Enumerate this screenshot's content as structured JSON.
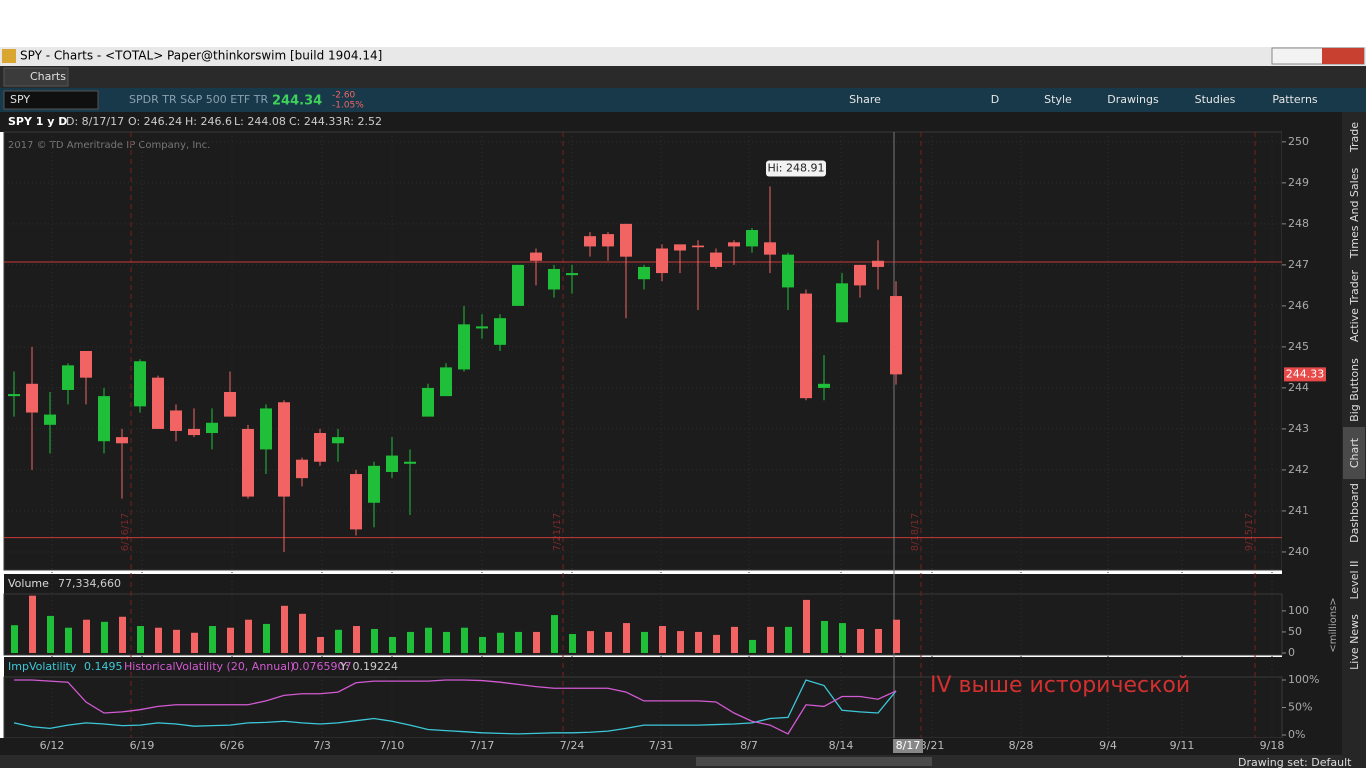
{
  "window": {
    "title": "SPY - Charts - <TOTAL> Paper@thinkorswim [build 1904.14]",
    "tab": "Charts"
  },
  "toolbar": {
    "symbol": "SPY",
    "description": "SPDR TR S&P 500 ETF TR",
    "last": "244.34",
    "change": "-2.60",
    "change_pct": "-1.05%",
    "buttons": [
      "Share",
      "D",
      "Style",
      "Drawings",
      "Studies",
      "Patterns"
    ]
  },
  "sidebar": [
    "Trade",
    "Times And Sales",
    "Active Trader",
    "Big Buttons",
    "Chart",
    "Dashboard",
    "Level II",
    "Live News"
  ],
  "status": "Drawing set: Default",
  "chart_data": [
    {
      "type": "candlestick",
      "header": [
        "SPY 1 y D",
        "D: 8/17/17",
        "O: 246.24",
        "H: 246.6",
        "L: 244.08",
        "C: 244.33",
        "R: 2.52"
      ],
      "copyright": "2017 © TD Ameritrade IP Company, Inc.",
      "high_label": "Hi: 248.91",
      "last_label": "244.33",
      "expirations": [
        "6/16/17",
        "7/21/17",
        "8/18/17",
        "9/15/17"
      ],
      "price_lines": [
        247.07,
        240.35
      ],
      "xticks": [
        "6/12",
        "6/19",
        "6/26",
        "7/3",
        "7/10",
        "7/17",
        "7/24",
        "7/31",
        "8/7",
        "8/14",
        "8/21",
        "8/28",
        "9/4",
        "9/11",
        "9/18"
      ],
      "cursor_label": "8/17",
      "up_color": "#1fbf3a",
      "down_color": "#f26464",
      "open": [
        243.8,
        244.1,
        243.1,
        243.95,
        244.9,
        242.7,
        242.8,
        243.55,
        244.25,
        243.45,
        243.0,
        242.9,
        243.9,
        243.0,
        242.5,
        243.65,
        242.25,
        242.9,
        242.65,
        241.9,
        241.2,
        241.95,
        242.15,
        243.3,
        243.8,
        244.45,
        245.45,
        245.05,
        246.0,
        247.3,
        246.4,
        246.75,
        247.7,
        247.75,
        248.0,
        246.65,
        247.4,
        247.5,
        247.47,
        247.3,
        247.55,
        247.45,
        247.55,
        246.45,
        246.3,
        244.0,
        245.6,
        247.0,
        247.1,
        246.24
      ],
      "high": [
        244.4,
        245.0,
        243.9,
        244.6,
        244.9,
        244.0,
        243.0,
        244.7,
        244.3,
        243.6,
        243.5,
        243.5,
        244.4,
        243.1,
        243.6,
        243.7,
        242.3,
        243.0,
        243.0,
        242.0,
        242.2,
        242.8,
        242.5,
        244.1,
        244.6,
        246.0,
        245.8,
        245.8,
        247.0,
        247.4,
        247.0,
        247.0,
        247.8,
        247.8,
        248.0,
        247.0,
        247.5,
        247.5,
        247.6,
        247.4,
        247.6,
        247.9,
        248.91,
        247.3,
        246.4,
        244.8,
        246.8,
        247.0,
        247.6,
        246.6
      ],
      "low": [
        243.3,
        242.0,
        242.4,
        243.6,
        243.6,
        242.4,
        241.3,
        243.4,
        243.0,
        242.7,
        242.8,
        242.5,
        243.3,
        241.3,
        241.9,
        240.0,
        241.6,
        242.1,
        242.2,
        240.4,
        240.6,
        241.8,
        240.9,
        243.3,
        243.8,
        244.4,
        245.2,
        244.9,
        246.0,
        246.5,
        246.2,
        246.3,
        247.2,
        247.1,
        245.7,
        246.4,
        246.6,
        246.8,
        245.9,
        246.9,
        247.0,
        247.3,
        246.8,
        245.9,
        243.7,
        243.7,
        245.6,
        246.2,
        246.4,
        244.08
      ],
      "close": [
        243.85,
        243.4,
        243.35,
        244.55,
        244.25,
        243.8,
        242.65,
        244.65,
        243.0,
        242.95,
        242.85,
        243.15,
        243.3,
        241.35,
        243.5,
        241.35,
        241.8,
        242.2,
        242.8,
        240.55,
        242.1,
        242.35,
        242.2,
        244.0,
        244.5,
        245.55,
        245.5,
        245.7,
        247.0,
        247.1,
        246.9,
        246.8,
        247.45,
        247.45,
        247.2,
        246.95,
        246.8,
        247.35,
        247.43,
        246.95,
        247.45,
        247.85,
        247.25,
        247.25,
        243.75,
        244.1,
        246.55,
        246.5,
        246.95,
        244.33
      ],
      "ylim": [
        239.56,
        250.24
      ],
      "yticks": [
        240,
        241,
        242,
        243,
        244,
        245,
        246,
        247,
        248,
        249,
        250
      ]
    },
    {
      "type": "bar",
      "title": "Volume",
      "readout": "77,334,660",
      "axis_label": "<millions>",
      "values": [
        66,
        136,
        88,
        60,
        79,
        74,
        86,
        64,
        60,
        55,
        48,
        64,
        60,
        79,
        69,
        112,
        93,
        38,
        55,
        64,
        57,
        38,
        50,
        60,
        50,
        60,
        38,
        48,
        50,
        50,
        90,
        45,
        52,
        50,
        71,
        50,
        64,
        52,
        50,
        43,
        62,
        31,
        62,
        62,
        126,
        76,
        71,
        57,
        57,
        79
      ],
      "ylim": [
        0,
        140
      ],
      "yticks": [
        0,
        50,
        100
      ]
    },
    {
      "type": "line",
      "series": [
        {
          "name": "ImpVolatility",
          "color": "#3cc8d8",
          "values": [
            22,
            15,
            12,
            18,
            22,
            20,
            17,
            18,
            22,
            20,
            16,
            17,
            18,
            22,
            23,
            25,
            22,
            20,
            22,
            26,
            30,
            25,
            18,
            10,
            8,
            6,
            4,
            3,
            2,
            3,
            4,
            4,
            5,
            7,
            12,
            18,
            18,
            18,
            18,
            19,
            20,
            22,
            30,
            32,
            100,
            90,
            45,
            42,
            40,
            80
          ]
        },
        {
          "name": "HistoricalVolatility (20, Annual)",
          "color": "#d25ad2",
          "values": [
            100,
            100,
            98,
            96,
            60,
            40,
            42,
            46,
            52,
            55,
            55,
            55,
            55,
            55,
            62,
            72,
            75,
            75,
            78,
            95,
            98,
            98,
            98,
            98,
            100,
            100,
            99,
            96,
            92,
            88,
            85,
            85,
            85,
            85,
            78,
            62,
            62,
            62,
            62,
            60,
            40,
            25,
            18,
            2,
            55,
            52,
            70,
            70,
            65,
            80
          ]
        }
      ],
      "readouts": [
        "0.1495",
        "0.0765907",
        "Y: 0.19224"
      ],
      "annotation": "IV выше исторической",
      "ylim": [
        0,
        100
      ],
      "yticks": [
        {
          "value": 0,
          "label": "0%"
        },
        {
          "value": 50,
          "label": "50%"
        },
        {
          "value": 100,
          "label": "100%"
        }
      ]
    }
  ]
}
